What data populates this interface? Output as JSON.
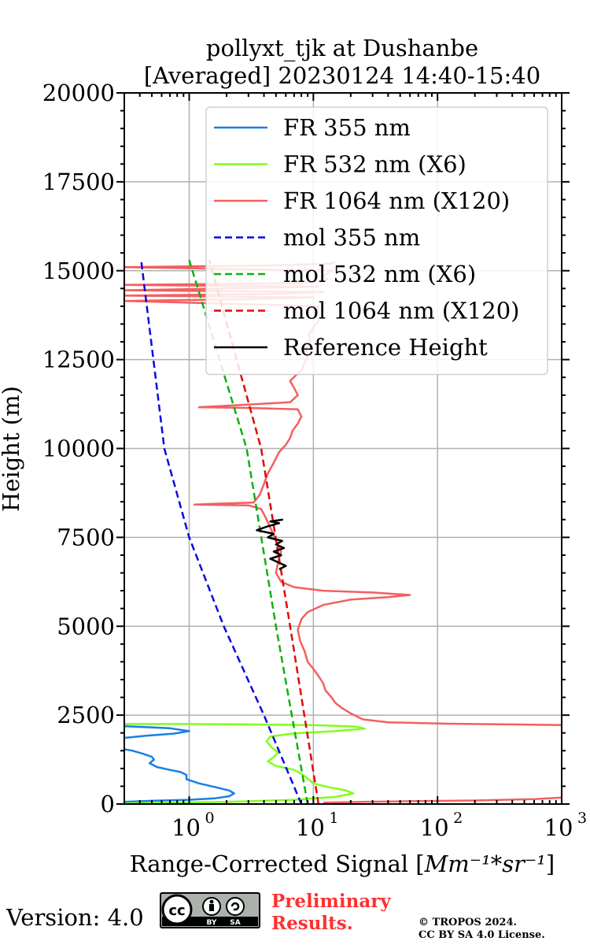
{
  "chart_data": {
    "type": "line",
    "title": "pollyxt_tjk at Dushanbe",
    "subtitle": "[Averaged] 20230124 14:40-15:40",
    "xlabel_prefix": "Range-Corrected Signal [",
    "xlabel_unit": "Mm^{-1}*sr^{-1}",
    "xlabel_suffix": "]",
    "ylabel": "Height (m)",
    "xscale": "log",
    "xlim": [
      0.3,
      1000
    ],
    "ylim": [
      0,
      20000
    ],
    "xticks": [
      1,
      10,
      100,
      1000
    ],
    "xtick_labels": [
      "10",
      "10",
      "10",
      "10"
    ],
    "xtick_exponents": [
      "0",
      "1",
      "2",
      "3"
    ],
    "yticks": [
      0,
      2500,
      5000,
      7500,
      10000,
      12500,
      15000,
      17500,
      20000
    ],
    "ytick_labels": [
      "0",
      "2500",
      "5000",
      "7500",
      "10000",
      "12500",
      "15000",
      "17500",
      "20000"
    ],
    "grid": true,
    "legend_placement": "top-right",
    "series": [
      {
        "name": "FR 355 nm",
        "color": "#1a7fe6",
        "dash": "solid",
        "points": [
          [
            0.3,
            60
          ],
          [
            0.5,
            90
          ],
          [
            1.0,
            120
          ],
          [
            1.6,
            160
          ],
          [
            2.1,
            220
          ],
          [
            2.3,
            300
          ],
          [
            2.1,
            380
          ],
          [
            1.6,
            480
          ],
          [
            1.2,
            580
          ],
          [
            0.95,
            700
          ],
          [
            0.95,
            820
          ],
          [
            0.85,
            900
          ],
          [
            0.7,
            960
          ],
          [
            0.55,
            1040
          ],
          [
            0.48,
            1150
          ],
          [
            0.52,
            1250
          ],
          [
            0.5,
            1330
          ],
          [
            0.42,
            1420
          ],
          [
            0.35,
            1500
          ],
          [
            0.3,
            1540
          ],
          [
            0.3,
            1580
          ]
        ]
      },
      {
        "name": "FR 355 nm",
        "color": "#1a7fe6",
        "dash": "solid",
        "points": [
          [
            0.3,
            1860
          ],
          [
            0.45,
            1920
          ],
          [
            0.75,
            1980
          ],
          [
            1.0,
            2050
          ],
          [
            0.7,
            2130
          ],
          [
            0.4,
            2170
          ],
          [
            0.3,
            2190
          ]
        ]
      },
      {
        "name": "FR 532 nm (X6)",
        "color": "#80ff1a",
        "dash": "solid",
        "points": [
          [
            0.3,
            20
          ],
          [
            2,
            60
          ],
          [
            7,
            120
          ],
          [
            15,
            200
          ],
          [
            21,
            300
          ],
          [
            18,
            390
          ],
          [
            13,
            480
          ],
          [
            10,
            580
          ],
          [
            9,
            720
          ],
          [
            8,
            850
          ],
          [
            7,
            960
          ],
          [
            5,
            1070
          ],
          [
            4.3,
            1200
          ],
          [
            4.8,
            1320
          ],
          [
            5.2,
            1450
          ],
          [
            4.6,
            1600
          ],
          [
            4.2,
            1760
          ],
          [
            4.5,
            1900
          ],
          [
            7,
            1990
          ],
          [
            15,
            2050
          ],
          [
            26,
            2120
          ],
          [
            22,
            2180
          ],
          [
            10,
            2220
          ],
          [
            3,
            2240
          ],
          [
            1,
            2250
          ],
          [
            0.3,
            2250
          ]
        ]
      },
      {
        "name": "FR 1064 nm (X120)",
        "color": "#f26060",
        "dash": "solid",
        "points": [
          [
            1000,
            180
          ],
          [
            600,
            140
          ],
          [
            200,
            100
          ],
          [
            60,
            80
          ],
          [
            25,
            60
          ],
          [
            12,
            40
          ]
        ]
      },
      {
        "name": "FR 1064 nm (X120)",
        "color": "#f26060",
        "dash": "solid",
        "points": [
          [
            1000,
            2220
          ],
          [
            400,
            2240
          ],
          [
            120,
            2260
          ],
          [
            40,
            2300
          ],
          [
            25,
            2380
          ],
          [
            20,
            2550
          ],
          [
            17,
            2700
          ],
          [
            15,
            2850
          ],
          [
            14,
            3000
          ],
          [
            12.5,
            3200
          ],
          [
            12,
            3400
          ],
          [
            11,
            3600
          ],
          [
            10,
            3800
          ],
          [
            9,
            4000
          ],
          [
            8.5,
            4300
          ],
          [
            7.8,
            4600
          ],
          [
            7.5,
            4900
          ],
          [
            8,
            5200
          ],
          [
            9,
            5400
          ],
          [
            12,
            5600
          ],
          [
            20,
            5750
          ],
          [
            40,
            5820
          ],
          [
            60,
            5880
          ],
          [
            30,
            5950
          ],
          [
            12,
            6000
          ],
          [
            7,
            6100
          ],
          [
            5.5,
            6250
          ],
          [
            5,
            6500
          ],
          [
            5.2,
            6800
          ],
          [
            5.5,
            7100
          ],
          [
            5,
            7400
          ],
          [
            4.6,
            7700
          ],
          [
            4.2,
            8000
          ],
          [
            3.8,
            8300
          ],
          [
            3,
            8400
          ],
          [
            1.1,
            8420
          ],
          [
            1.5,
            8440
          ],
          [
            3.3,
            8480
          ],
          [
            3.7,
            8700
          ],
          [
            4.0,
            9000
          ],
          [
            4.3,
            9300
          ],
          [
            4.8,
            9600
          ],
          [
            5.3,
            9900
          ],
          [
            6.0,
            10100
          ],
          [
            6.5,
            10300
          ],
          [
            6.8,
            10500
          ],
          [
            7.5,
            10700
          ],
          [
            8.0,
            10900
          ],
          [
            7.5,
            11100
          ],
          [
            3,
            11140
          ],
          [
            1.2,
            11160
          ],
          [
            2,
            11200
          ],
          [
            6.5,
            11300
          ],
          [
            7.5,
            11500
          ],
          [
            7.0,
            11700
          ],
          [
            6.5,
            11900
          ],
          [
            7.2,
            12050
          ],
          [
            8.0,
            12200
          ],
          [
            8.5,
            12400
          ],
          [
            9.0,
            12600
          ],
          [
            8.8,
            12800
          ],
          [
            9.5,
            13000
          ],
          [
            9.2,
            13200
          ],
          [
            10,
            13400
          ],
          [
            11,
            13600
          ],
          [
            10.5,
            13800
          ],
          [
            11,
            14000
          ],
          [
            0.3,
            14150
          ],
          [
            3,
            14200
          ],
          [
            10,
            14250
          ],
          [
            0.3,
            14300
          ],
          [
            5,
            14350
          ],
          [
            12,
            14400
          ],
          [
            0.3,
            14450
          ],
          [
            2,
            14500
          ],
          [
            11,
            14550
          ],
          [
            0.3,
            14600
          ],
          [
            8,
            14650
          ],
          [
            13,
            14750
          ],
          [
            12,
            14850
          ],
          [
            14,
            15000
          ],
          [
            0.3,
            15100
          ],
          [
            5,
            15150
          ],
          [
            14,
            15200
          ],
          [
            15,
            15250
          ]
        ]
      },
      {
        "name": "mol 355 nm",
        "color": "#0a0ae0",
        "dash": "dashed",
        "points": [
          [
            8.0,
            0
          ],
          [
            4.0,
            2500
          ],
          [
            1.9,
            5000
          ],
          [
            1.0,
            7500
          ],
          [
            0.63,
            10000
          ],
          [
            0.41,
            15300
          ]
        ]
      },
      {
        "name": "mol 532 nm (X6)",
        "color": "#10b010",
        "dash": "dashed",
        "points": [
          [
            9.0,
            0
          ],
          [
            5.0,
            5000
          ],
          [
            2.9,
            10000
          ],
          [
            1.0,
            15300
          ]
        ]
      },
      {
        "name": "mol 1064 nm (X120)",
        "color": "#dd0a0a",
        "dash": "dashed",
        "points": [
          [
            11.0,
            0
          ],
          [
            6.5,
            5000
          ],
          [
            3.8,
            10000
          ],
          [
            1.45,
            15300
          ]
        ]
      },
      {
        "name": "Reference Height",
        "color": "#000000",
        "dash": "solid",
        "points": [
          [
            5.3,
            6600
          ],
          [
            6.0,
            6700
          ],
          [
            5.2,
            6800
          ],
          [
            4.5,
            6900
          ],
          [
            5.5,
            7000
          ],
          [
            4.8,
            7100
          ],
          [
            5.8,
            7200
          ],
          [
            5.0,
            7300
          ],
          [
            5.6,
            7400
          ],
          [
            4.3,
            7500
          ],
          [
            4.8,
            7600
          ],
          [
            3.5,
            7700
          ],
          [
            4.2,
            7800
          ],
          [
            5.3,
            7900
          ],
          [
            4.5,
            7950
          ],
          [
            5.7,
            8000
          ]
        ]
      }
    ]
  },
  "footer": {
    "version": "Version: 4.0",
    "cc_label": "cc",
    "cc_by": "BY",
    "cc_sa": "SA",
    "preliminary_line1": "Preliminary",
    "preliminary_line2": "Results.",
    "preliminary_color": "#ff3030",
    "copyright_line1": "© TROPOS 2024.",
    "copyright_line2": "CC BY SA 4.0 License."
  }
}
